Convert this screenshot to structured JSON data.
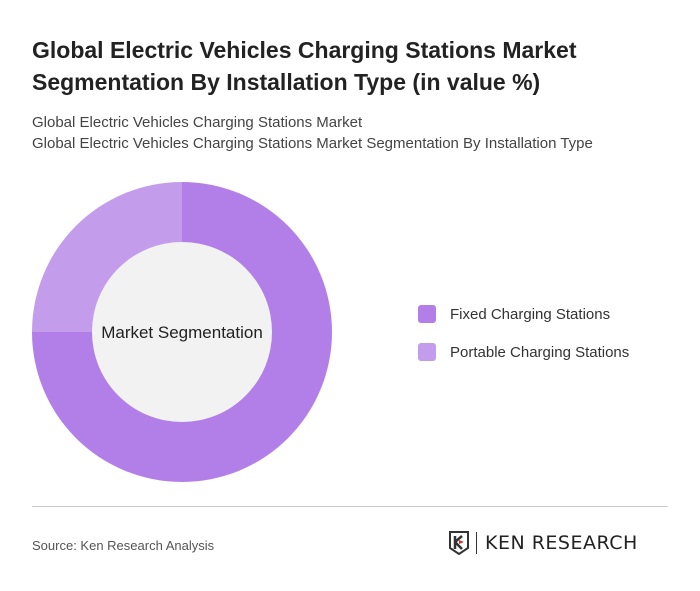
{
  "title": "Global Electric Vehicles Charging Stations Market Segmentation By Installation Type (in value %)",
  "subtitle_1": "Global Electric Vehicles Charging Stations Market",
  "subtitle_2": "Global Electric Vehicles Charging Stations Market Segmentation By Installation Type",
  "source": "Source: Ken Research Analysis",
  "logo_text": "KEN RESEARCH",
  "chart_data": {
    "type": "pie",
    "donut": true,
    "center_label": "Market Segmentation",
    "categories": [
      "Fixed Charging Stations",
      "Portable Charging Stations"
    ],
    "values": [
      75,
      25
    ],
    "colors": [
      "#b27fe8",
      "#c49cec"
    ],
    "legend_position": "right"
  }
}
